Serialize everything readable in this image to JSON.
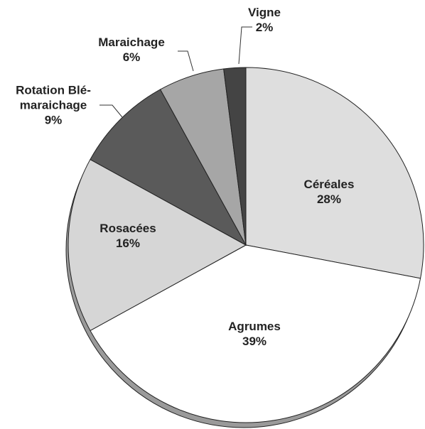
{
  "chart_data": {
    "type": "pie",
    "categories": [
      "Céréales",
      "Agrumes",
      "Rosacées",
      "Rotation Blé-\nmaraichage",
      "Maraichage",
      "Vigne"
    ],
    "values": [
      28,
      39,
      16,
      9,
      6,
      2
    ],
    "value_labels": [
      "28%",
      "39%",
      "16%",
      "9%",
      "6%",
      "2%"
    ],
    "colors": [
      "#dedede",
      "#ffffff",
      "#d6d6d6",
      "#5a5a5a",
      "#a6a6a6",
      "#444444"
    ]
  }
}
